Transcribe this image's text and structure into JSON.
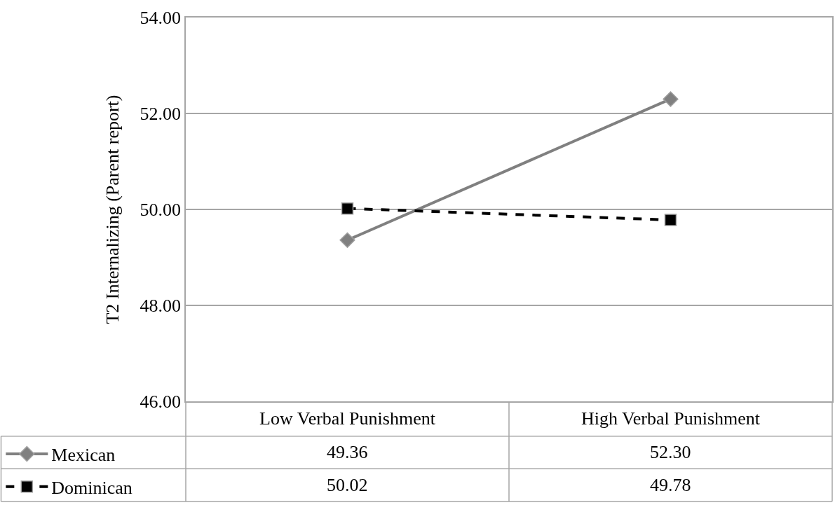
{
  "chart_data": {
    "type": "line",
    "ylabel": "T2 Internalizing (Parent report)",
    "categories": [
      "Low Verbal Punishment",
      "High Verbal Punishment"
    ],
    "series": [
      {
        "name": "Mexican",
        "color": "#808080",
        "values": [
          49.36,
          52.3
        ],
        "value_labels": [
          "49.36",
          "52.30"
        ],
        "marker": "diamond",
        "line_style": "solid"
      },
      {
        "name": "Dominican",
        "color": "#000000",
        "values": [
          50.02,
          49.78
        ],
        "value_labels": [
          "50.02",
          "49.78"
        ],
        "marker": "square",
        "line_style": "dashed"
      }
    ],
    "ylim": [
      46,
      54
    ],
    "yticks": [
      {
        "value": 46,
        "label": "46.00"
      },
      {
        "value": 48,
        "label": "48.00"
      },
      {
        "value": 50,
        "label": "50.00"
      },
      {
        "value": 52,
        "label": "52.00"
      },
      {
        "value": 54,
        "label": "54.00"
      }
    ],
    "grid": "y",
    "legend": "bottom left"
  }
}
